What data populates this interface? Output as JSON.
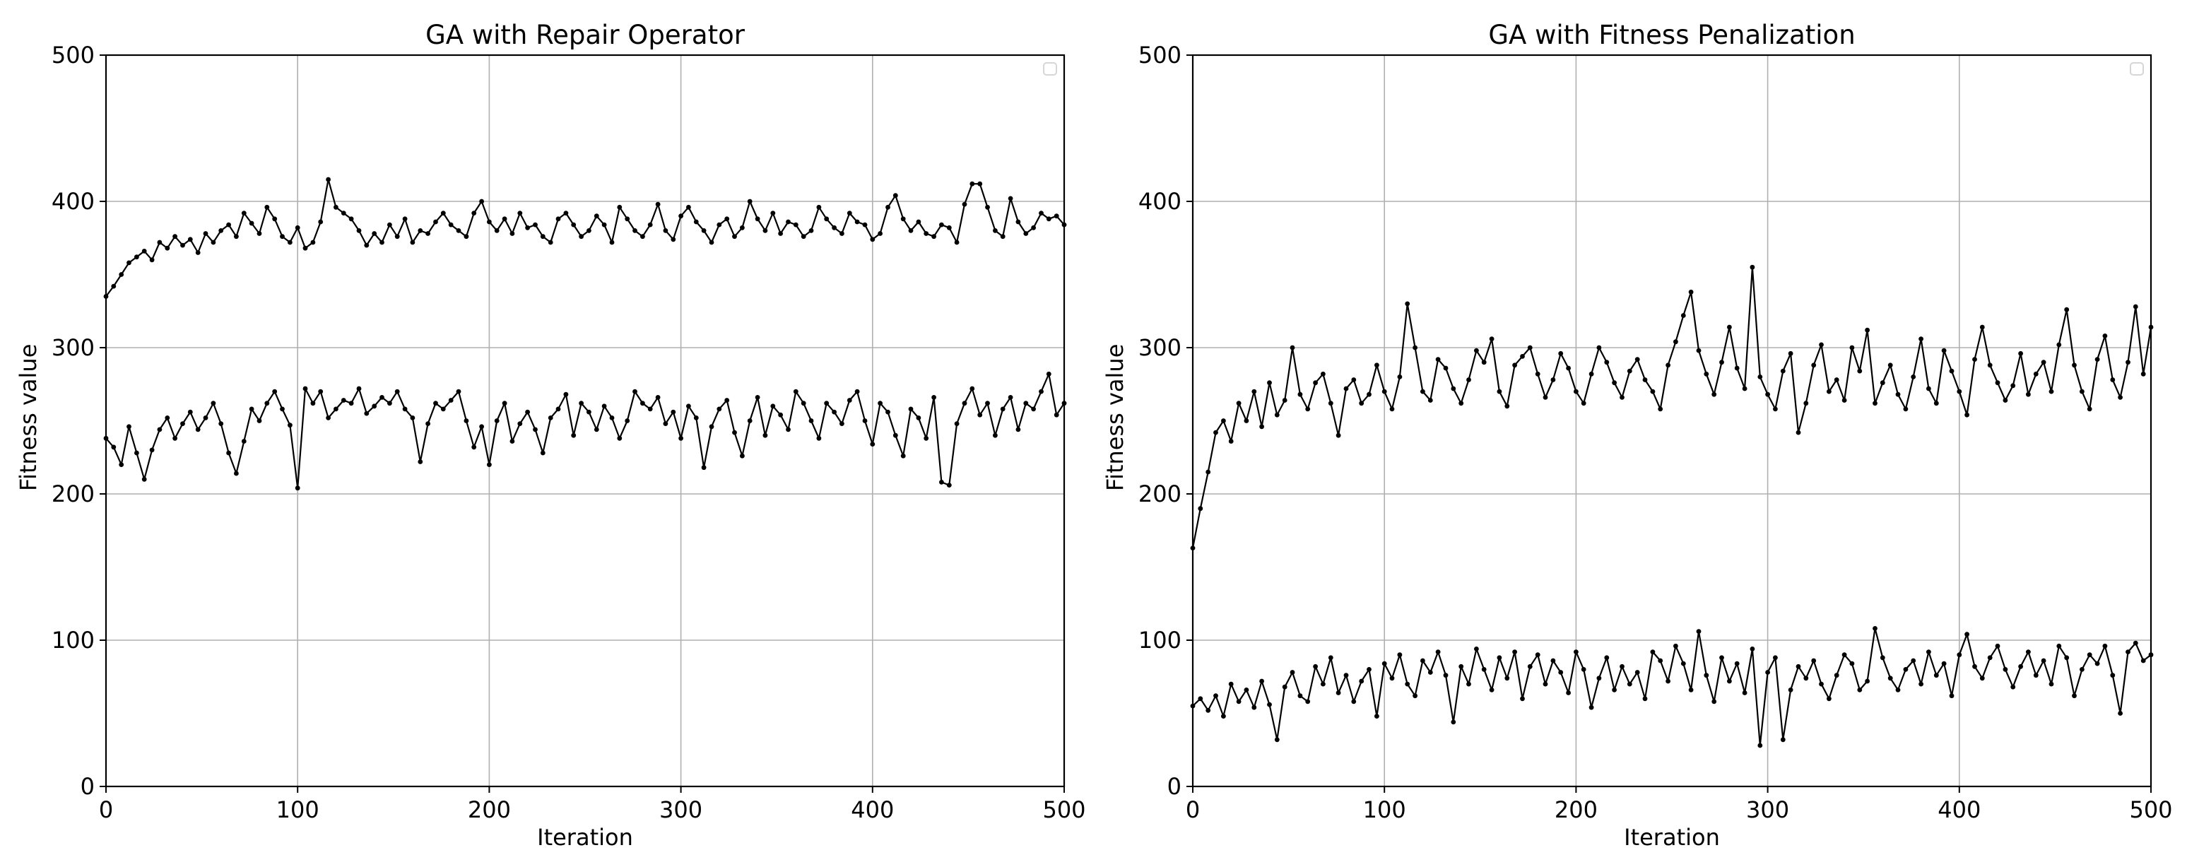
{
  "figure": {
    "background": "#ffffff",
    "grid_color": "#b0b0b0",
    "line_color": "#000000"
  },
  "chart_data": [
    {
      "type": "line",
      "title": "GA with Repair Operator",
      "xlabel": "Iteration",
      "ylabel": "Fitness value",
      "xlim": [
        0,
        500
      ],
      "ylim": [
        0,
        500
      ],
      "xticks": [
        0,
        100,
        200,
        300,
        400,
        500
      ],
      "yticks": [
        0,
        100,
        200,
        300,
        400,
        500
      ],
      "grid": true,
      "legend": {
        "position": "upper right",
        "entries": []
      },
      "marker": "o",
      "x_step": 4,
      "x_start": 0,
      "series": [
        {
          "name": "upper",
          "values": [
            335,
            342,
            350,
            358,
            362,
            366,
            360,
            372,
            368,
            376,
            370,
            374,
            365,
            378,
            372,
            380,
            384,
            376,
            392,
            385,
            378,
            396,
            388,
            376,
            372,
            382,
            368,
            372,
            386,
            415,
            396,
            392,
            388,
            380,
            370,
            378,
            372,
            384,
            376,
            388,
            372,
            380,
            378,
            386,
            392,
            384,
            380,
            376,
            392,
            400,
            386,
            380,
            388,
            378,
            392,
            382,
            384,
            376,
            372,
            388,
            392,
            384,
            376,
            380,
            390,
            384,
            372,
            396,
            388,
            380,
            376,
            384,
            398,
            380,
            374,
            390,
            396,
            386,
            380,
            372,
            384,
            388,
            376,
            382,
            400,
            388,
            380,
            392,
            378,
            386,
            384,
            376,
            380,
            396,
            388,
            382,
            378,
            392,
            386,
            384,
            374,
            378,
            396,
            404,
            388,
            380,
            386,
            378,
            376,
            384,
            382,
            372,
            398,
            412,
            412,
            396,
            380,
            376,
            402,
            386,
            378,
            382,
            392,
            388,
            390,
            384
          ]
        },
        {
          "name": "lower",
          "values": [
            238,
            232,
            220,
            246,
            228,
            210,
            230,
            244,
            252,
            238,
            248,
            256,
            244,
            252,
            262,
            248,
            228,
            214,
            236,
            258,
            250,
            262,
            270,
            258,
            247,
            204,
            272,
            262,
            270,
            252,
            258,
            264,
            262,
            272,
            255,
            260,
            266,
            262,
            270,
            258,
            252,
            222,
            248,
            262,
            258,
            264,
            270,
            250,
            232,
            246,
            220,
            250,
            262,
            236,
            248,
            256,
            244,
            228,
            252,
            258,
            268,
            240,
            262,
            256,
            244,
            260,
            252,
            238,
            250,
            270,
            262,
            258,
            266,
            248,
            256,
            238,
            260,
            252,
            218,
            246,
            258,
            264,
            242,
            226,
            250,
            266,
            240,
            260,
            254,
            244,
            270,
            262,
            250,
            238,
            262,
            256,
            248,
            264,
            270,
            250,
            234,
            262,
            256,
            240,
            226,
            258,
            252,
            238,
            266,
            208,
            206,
            248,
            262,
            272,
            254,
            262,
            240,
            258,
            266,
            244,
            262,
            258,
            270,
            282,
            254,
            262
          ]
        }
      ]
    },
    {
      "type": "line",
      "title": "GA with Fitness Penalization",
      "xlabel": "Iteration",
      "ylabel": "Fitness value",
      "xlim": [
        0,
        500
      ],
      "ylim": [
        0,
        500
      ],
      "xticks": [
        0,
        100,
        200,
        300,
        400,
        500
      ],
      "yticks": [
        0,
        100,
        200,
        300,
        400,
        500
      ],
      "grid": true,
      "legend": {
        "position": "upper right",
        "entries": []
      },
      "marker": "o",
      "x_step": 4,
      "x_start": 0,
      "series": [
        {
          "name": "upper",
          "values": [
            163,
            190,
            215,
            242,
            250,
            236,
            262,
            250,
            270,
            246,
            276,
            254,
            264,
            300,
            268,
            258,
            276,
            282,
            262,
            240,
            272,
            278,
            262,
            268,
            288,
            270,
            258,
            280,
            330,
            300,
            270,
            264,
            292,
            286,
            272,
            262,
            278,
            298,
            290,
            306,
            270,
            260,
            288,
            294,
            300,
            282,
            266,
            278,
            296,
            286,
            270,
            262,
            282,
            300,
            290,
            276,
            266,
            284,
            292,
            278,
            270,
            258,
            288,
            304,
            322,
            338,
            298,
            282,
            268,
            290,
            314,
            286,
            272,
            355,
            280,
            268,
            258,
            284,
            296,
            242,
            262,
            288,
            302,
            270,
            278,
            264,
            300,
            284,
            312,
            262,
            276,
            288,
            268,
            258,
            280,
            306,
            272,
            262,
            298,
            284,
            270,
            254,
            292,
            314,
            288,
            276,
            264,
            274,
            296,
            268,
            282,
            290,
            270,
            302,
            326,
            288,
            270,
            258,
            292,
            308,
            278,
            266,
            290,
            328,
            282,
            314
          ]
        },
        {
          "name": "lower",
          "values": [
            55,
            60,
            52,
            62,
            48,
            70,
            58,
            66,
            54,
            72,
            56,
            32,
            68,
            78,
            62,
            58,
            82,
            70,
            88,
            64,
            76,
            58,
            72,
            80,
            48,
            84,
            74,
            90,
            70,
            62,
            86,
            78,
            92,
            76,
            44,
            82,
            70,
            94,
            80,
            66,
            88,
            74,
            92,
            60,
            82,
            90,
            70,
            86,
            78,
            64,
            92,
            80,
            54,
            74,
            88,
            66,
            82,
            70,
            78,
            60,
            92,
            86,
            72,
            96,
            84,
            66,
            106,
            76,
            58,
            88,
            72,
            84,
            64,
            94,
            28,
            78,
            88,
            32,
            66,
            82,
            74,
            86,
            70,
            60,
            76,
            90,
            84,
            66,
            72,
            108,
            88,
            74,
            66,
            80,
            86,
            70,
            92,
            76,
            84,
            62,
            90,
            104,
            82,
            74,
            88,
            96,
            80,
            68,
            82,
            92,
            76,
            86,
            70,
            96,
            88,
            62,
            80,
            90,
            84,
            96,
            76,
            50,
            92,
            98,
            86,
            90
          ]
        }
      ]
    }
  ],
  "panels": [
    {
      "title": "GA with Repair Operator",
      "xlabel": "Iteration",
      "ylabel": "Fitness value",
      "xtick_labels": [
        "0",
        "100",
        "200",
        "300",
        "400",
        "500"
      ],
      "ytick_labels": [
        "0",
        "100",
        "200",
        "300",
        "400",
        "500"
      ]
    },
    {
      "title": "GA with Fitness Penalization",
      "xlabel": "Iteration",
      "ylabel": "Fitness value",
      "xtick_labels": [
        "0",
        "100",
        "200",
        "300",
        "400",
        "500"
      ],
      "ytick_labels": [
        "0",
        "100",
        "200",
        "300",
        "400",
        "500"
      ]
    }
  ]
}
